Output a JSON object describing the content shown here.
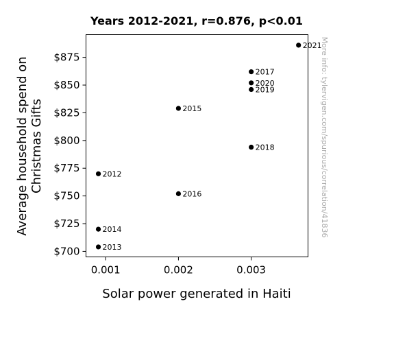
{
  "chart_data": {
    "type": "scatter",
    "title": "Years 2012-2021, r=0.876, p<0.01",
    "xlabel": "Solar power generated in Haiti",
    "ylabel_lines": [
      "Average household spend on",
      "Christmas Gifts"
    ],
    "xlim": [
      0.00073,
      0.00378
    ],
    "ylim": [
      695,
      895.5
    ],
    "x_ticks": [
      0.001,
      0.002,
      0.003
    ],
    "x_tick_labels": [
      "0.001",
      "0.002",
      "0.003"
    ],
    "y_ticks": [
      700,
      725,
      750,
      775,
      800,
      825,
      850,
      875
    ],
    "y_tick_labels": [
      "$700",
      "$725",
      "$750",
      "$775",
      "$800",
      "$825",
      "$850",
      "$875"
    ],
    "grid": false,
    "marker_color": "#000000",
    "points": [
      {
        "label": "2012",
        "x": 0.0009,
        "y": 770
      },
      {
        "label": "2013",
        "x": 0.0009,
        "y": 704
      },
      {
        "label": "2014",
        "x": 0.0009,
        "y": 720
      },
      {
        "label": "2015",
        "x": 0.002,
        "y": 829
      },
      {
        "label": "2016",
        "x": 0.002,
        "y": 752
      },
      {
        "label": "2017",
        "x": 0.003,
        "y": 862
      },
      {
        "label": "2018",
        "x": 0.003,
        "y": 794
      },
      {
        "label": "2019",
        "x": 0.003,
        "y": 846
      },
      {
        "label": "2020",
        "x": 0.003,
        "y": 852
      },
      {
        "label": "2021",
        "x": 0.00365,
        "y": 886
      }
    ],
    "watermark": "More info: tylervigen.com/spurious/correlation/41836"
  }
}
